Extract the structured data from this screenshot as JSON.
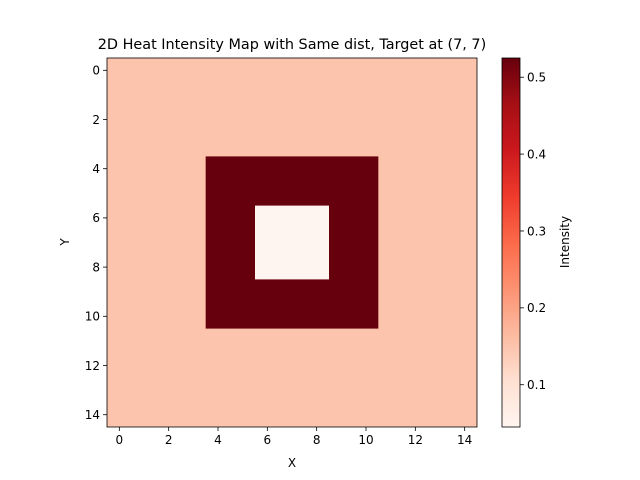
{
  "chart_data": {
    "type": "heatmap",
    "title": "2D Heat Intensity Map with Same dist, Target at (7, 7)",
    "xlabel": "X",
    "ylabel": "Y",
    "colorbar_label": "Intensity",
    "colormap": "Reds",
    "x_ticks": [
      "0",
      "2",
      "4",
      "6",
      "8",
      "10",
      "12",
      "14"
    ],
    "y_ticks": [
      "0",
      "2",
      "4",
      "6",
      "8",
      "10",
      "12",
      "14"
    ],
    "colorbar_ticks": [
      "0.1",
      "0.2",
      "0.3",
      "0.4",
      "0.5"
    ],
    "xlim": [
      -0.5,
      14.5
    ],
    "ylim": [
      14.5,
      -0.5
    ],
    "value_range": [
      0.045,
      0.525
    ],
    "target": [
      7,
      7
    ],
    "regions": [
      {
        "x_range": [
          0,
          14
        ],
        "y_range": [
          0,
          14
        ],
        "value": 0.15
      },
      {
        "x_range": [
          4,
          10
        ],
        "y_range": [
          4,
          10
        ],
        "value": 0.525
      },
      {
        "x_range": [
          6,
          8
        ],
        "y_range": [
          6,
          8
        ],
        "value": 0.045
      }
    ]
  }
}
